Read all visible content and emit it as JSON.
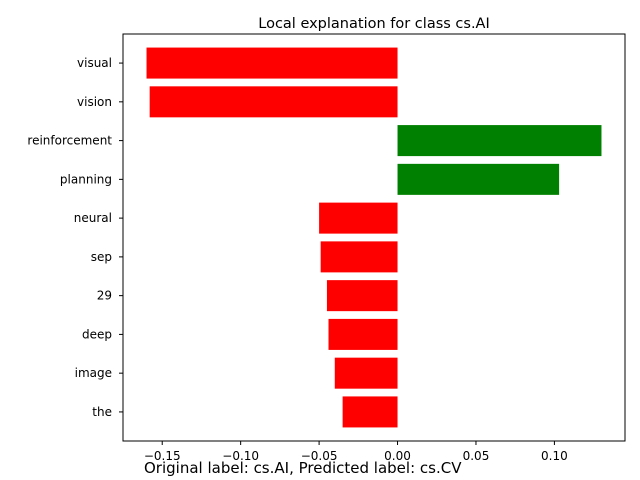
{
  "chart_data": {
    "type": "bar",
    "orientation": "horizontal",
    "title": "Local explanation for class cs.AI",
    "xlabel": "",
    "ylabel": "",
    "categories": [
      "visual",
      "vision",
      "reinforcement",
      "planning",
      "neural",
      "sep",
      "29",
      "deep",
      "image",
      "the"
    ],
    "values": [
      -0.16,
      -0.158,
      0.13,
      0.103,
      -0.05,
      -0.049,
      -0.045,
      -0.044,
      -0.04,
      -0.035
    ],
    "xlim": [
      -0.175,
      0.145
    ],
    "xticks": [
      -0.15,
      -0.1,
      -0.05,
      0.0,
      0.05,
      0.1
    ],
    "xtick_labels": [
      "−0.15",
      "−0.10",
      "−0.05",
      "0.00",
      "0.05",
      "0.10"
    ],
    "grid": false,
    "colors": {
      "positive": "#008000",
      "negative": "#ff0000"
    }
  },
  "caption": "Original label: cs.AI, Predicted label: cs.CV"
}
